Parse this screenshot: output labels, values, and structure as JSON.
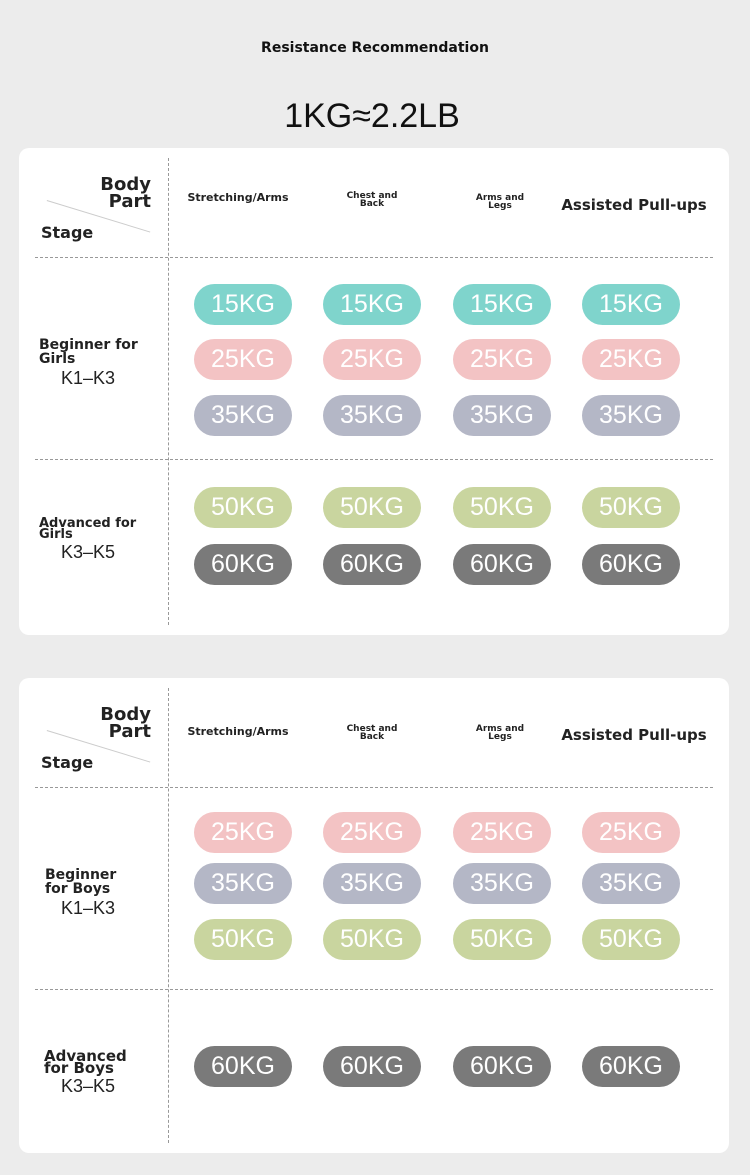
{
  "title": "Resistance Recommendation",
  "conversion": "1KG≈2.2LB",
  "colors": {
    "15KG": "#7fd4cc",
    "25KG": "#f3c3c4",
    "35KG": "#b4b7c6",
    "50KG": "#c9d59f",
    "60KG": "#7a7a7a"
  },
  "headers": {
    "body_part": "Body\nPart",
    "stage": "Stage",
    "columns": [
      "Stretching/Arms",
      "Chest and\nBack",
      "Arms and\nLegs",
      "Assisted Pull-ups"
    ]
  },
  "tables": [
    {
      "rows": [
        {
          "stage": "Beginner for\nGirls",
          "range": "K1–K3",
          "weights": [
            "15KG",
            "25KG",
            "35KG"
          ]
        },
        {
          "stage": "Advanced for\nGirls",
          "range": "K3–K5",
          "weights": [
            "50KG",
            "60KG"
          ]
        }
      ]
    },
    {
      "rows": [
        {
          "stage": "Beginner\nfor Boys",
          "range": "K1–K3",
          "weights": [
            "25KG",
            "35KG",
            "50KG"
          ]
        },
        {
          "stage": "Advanced\nfor Boys",
          "range": "K3–K5",
          "weights": [
            "60KG"
          ]
        }
      ]
    }
  ]
}
